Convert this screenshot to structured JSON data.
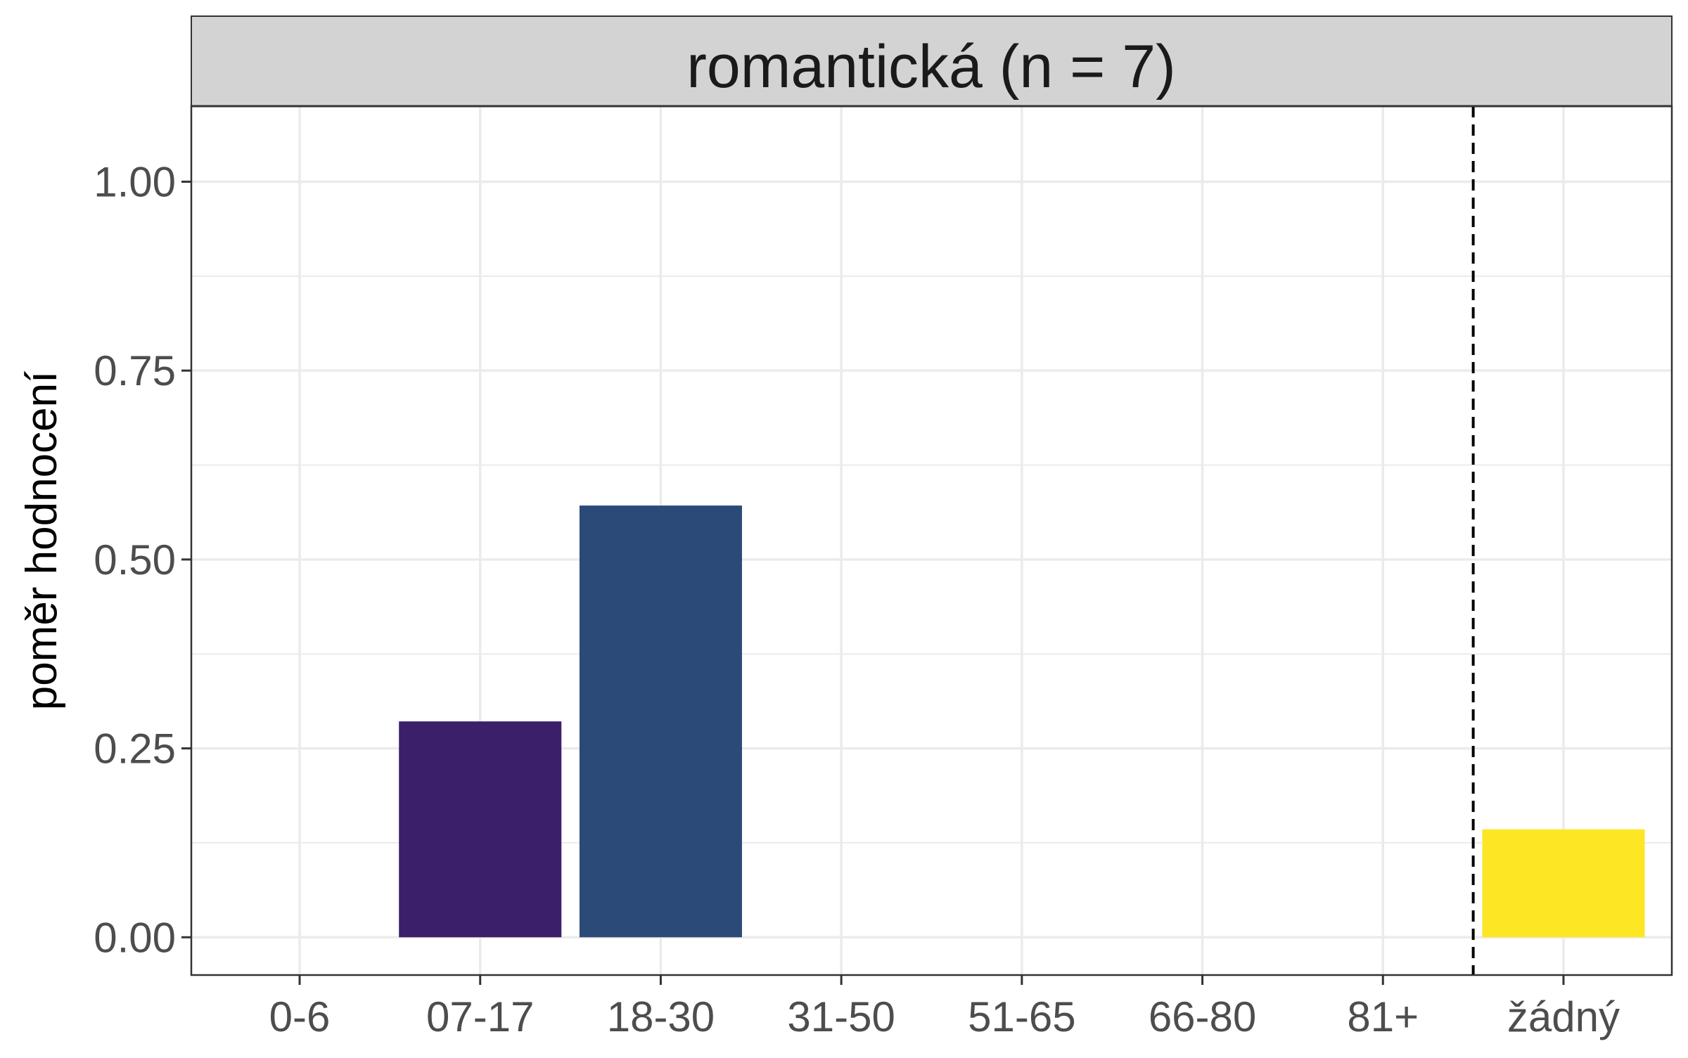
{
  "chart_data": {
    "type": "bar",
    "title": "romantická (n = 7)",
    "xlabel": "",
    "ylabel": "poměr hodnocení",
    "categories": [
      "0-6",
      "07-17",
      "18-30",
      "31-50",
      "51-65",
      "66-80",
      "81+",
      "žádný"
    ],
    "values": [
      0,
      0.2857,
      0.5714,
      0,
      0,
      0,
      0,
      0.1429
    ],
    "bar_colors": [
      "#440154",
      "#3B1F6B",
      "#2B4A78",
      "#21908C",
      "#35B779",
      "#8FD744",
      "#C2DF23",
      "#FDE725"
    ],
    "ylim": [
      -0.05,
      1.1
    ],
    "yticks": [
      0.0,
      0.25,
      0.5,
      0.75,
      1.0
    ],
    "ytick_labels": [
      "0.00",
      "0.25",
      "0.50",
      "0.75",
      "1.00"
    ],
    "grid": true,
    "reference_line": {
      "style": "dashed",
      "between": [
        "81+",
        "žádný"
      ],
      "color": "#000000"
    },
    "strip_color": "#D3D3D3"
  }
}
